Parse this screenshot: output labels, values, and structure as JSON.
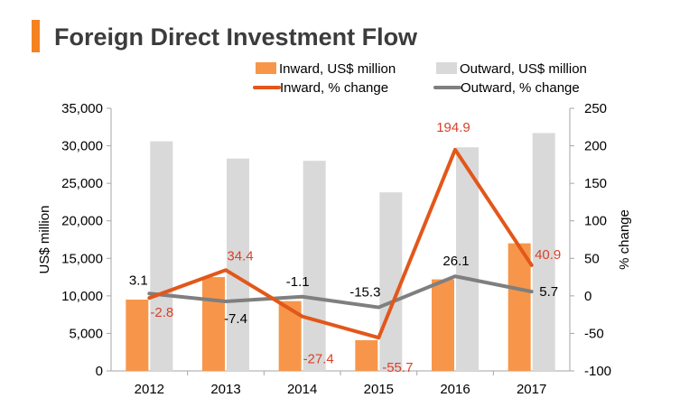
{
  "title": "Foreign Direct Investment Flow",
  "colors": {
    "accent": "#f58221",
    "inward_bar": "#f7964a",
    "outward_bar": "#d9d9d9",
    "inward_line": "#e2571a",
    "outward_line": "#7f7f7f",
    "inward_label": "#d9412a",
    "outward_label": "#000000",
    "axis": "#a6a6a6"
  },
  "chart_data": {
    "type": "bar",
    "title": "Foreign Direct Investment Flow",
    "categories": [
      "2012",
      "2013",
      "2014",
      "2015",
      "2016",
      "2017"
    ],
    "series": [
      {
        "name": "Inward, US$ million",
        "kind": "bar",
        "axis": "left",
        "values": [
          9500,
          12500,
          9300,
          4100,
          12200,
          17000
        ]
      },
      {
        "name": "Outward, US$ million",
        "kind": "bar",
        "axis": "left",
        "values": [
          30600,
          28300,
          28000,
          23800,
          29800,
          31700
        ]
      },
      {
        "name": "Inward, % change",
        "kind": "line",
        "axis": "right",
        "values": [
          -2.8,
          34.4,
          -27.4,
          -55.7,
          194.9,
          40.9
        ]
      },
      {
        "name": "Outward, % change",
        "kind": "line",
        "axis": "right",
        "values": [
          3.1,
          -7.4,
          -1.1,
          -15.3,
          26.1,
          5.7
        ]
      }
    ],
    "inward_pct_labels": [
      "-2.8",
      "34.4",
      "-27.4",
      "-55.7",
      "194.9",
      "40.9"
    ],
    "outward_pct_labels": [
      "3.1",
      "-7.4",
      "-1.1",
      "-15.3",
      "26.1",
      "5.7"
    ],
    "ylabel": "US$ million",
    "y2label": "% change",
    "ylim": [
      0,
      35000
    ],
    "y2lim": [
      -100,
      250
    ],
    "yticks": [
      "0",
      "5,000",
      "10,000",
      "15,000",
      "20,000",
      "25,000",
      "30,000",
      "35,000"
    ],
    "y2ticks": [
      "-100",
      "-50",
      "0",
      "50",
      "100",
      "150",
      "200",
      "250"
    ],
    "legend": {
      "position": "top",
      "items": [
        "Inward, US$ million",
        "Outward, US$ million",
        "Inward, % change",
        "Outward, % change"
      ]
    }
  }
}
